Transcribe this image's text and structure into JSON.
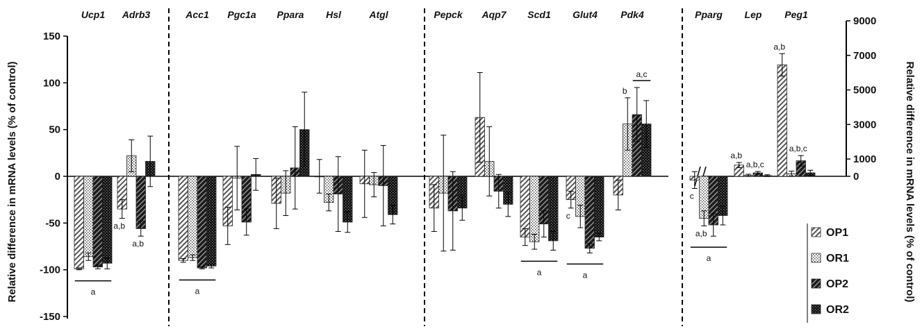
{
  "chart_data": {
    "type": "bar",
    "ylabel_left": "Relative difference in mRNA levels (% of control)",
    "ylabel_right": "Relative difference in mRNA levels (% of control)",
    "ylim_left": [
      -150,
      150
    ],
    "yticks_left": [
      150,
      100,
      50,
      0,
      -50,
      -100,
      -150
    ],
    "ylim_right": [
      0,
      9000
    ],
    "yticks_right": [
      9000,
      7000,
      5000,
      3000,
      1000,
      0
    ],
    "grid": false,
    "legend_position": "bottom-right",
    "series": [
      {
        "name": "OP1",
        "pattern": "diagonal"
      },
      {
        "name": "OR1",
        "pattern": "dots"
      },
      {
        "name": "OP2",
        "pattern": "dark-diagonal"
      },
      {
        "name": "OR2",
        "pattern": "dark-dots"
      }
    ],
    "groups": [
      {
        "gene": "Ucp1",
        "axis": "left",
        "values": [
          -99,
          -86,
          -97,
          -93
        ],
        "errors": [
          1,
          4,
          2,
          6
        ]
      },
      {
        "gene": "Adrb3",
        "axis": "left",
        "values": [
          -35,
          22,
          -56,
          16
        ],
        "errors": [
          10,
          17,
          8,
          27
        ]
      },
      {
        "gene": "Acc1",
        "axis": "left",
        "values": [
          -90,
          -87,
          -98,
          -96
        ],
        "errors": [
          2,
          3,
          1,
          2
        ]
      },
      {
        "gene": "Pgc1a",
        "axis": "left",
        "values": [
          -53,
          -2,
          -49,
          2
        ],
        "errors": [
          20,
          34,
          14,
          17
        ]
      },
      {
        "gene": "Ppara",
        "axis": "left",
        "values": [
          -29,
          -18,
          9,
          50
        ],
        "errors": [
          27,
          24,
          44,
          40
        ]
      },
      {
        "gene": "Hsl",
        "axis": "left",
        "values": [
          0,
          -28,
          -19,
          -49
        ],
        "errors": [
          18,
          9,
          40,
          11
        ]
      },
      {
        "gene": "Atgl",
        "axis": "left",
        "values": [
          -8,
          -9,
          -10,
          -41
        ],
        "errors": [
          36,
          13,
          43,
          10
        ]
      },
      {
        "gene": "Pepck",
        "axis": "left",
        "values": [
          -34,
          -18,
          -37,
          -34
        ],
        "errors": [
          25,
          62,
          42,
          13
        ]
      },
      {
        "gene": "Aqp7",
        "axis": "left",
        "values": [
          63,
          16,
          -16,
          -30
        ],
        "errors": [
          48,
          37,
          18,
          13
        ]
      },
      {
        "gene": "Scd1",
        "axis": "left",
        "values": [
          -65,
          -70,
          -51,
          -69
        ],
        "errors": [
          9,
          8,
          14,
          10
        ]
      },
      {
        "gene": "Glut4",
        "axis": "left",
        "values": [
          -25,
          -43,
          -77,
          -65
        ],
        "errors": [
          9,
          12,
          5,
          4
        ]
      },
      {
        "gene": "Pdk4",
        "axis": "left",
        "values": [
          -20,
          56,
          66,
          56
        ],
        "errors": [
          16,
          28,
          29,
          25
        ]
      },
      {
        "gene": "Pparg",
        "axis": "left",
        "values": [
          -4,
          -45,
          -52,
          -42
        ],
        "errors": [
          9,
          8,
          12,
          10
        ]
      },
      {
        "gene": "Lep",
        "axis": "right",
        "values": [
          650,
          60,
          200,
          40
        ],
        "errors": [
          150,
          60,
          80,
          50
        ]
      },
      {
        "gene": "Peg1",
        "axis": "right",
        "values": [
          6450,
          150,
          900,
          200
        ],
        "errors": [
          650,
          150,
          300,
          150
        ]
      }
    ],
    "annotations": [
      {
        "gene": "Adrb3",
        "text": "a,b",
        "series": "OP1"
      },
      {
        "gene": "Adrb3",
        "text": "a,b",
        "series": "OP2"
      },
      {
        "gene": "Glut4",
        "text": "c",
        "series": "OP1"
      },
      {
        "gene": "Pdk4",
        "text": "b",
        "series": "OR1"
      },
      {
        "gene": "Pdk4",
        "text": "a,c",
        "series": "OP2-OR2"
      },
      {
        "gene": "Pparg",
        "text": "c",
        "series": "OP1"
      },
      {
        "gene": "Pparg",
        "text": "a,b",
        "series": "OR1"
      },
      {
        "gene": "Lep",
        "text": "a,b",
        "series": "OP1"
      },
      {
        "gene": "Lep",
        "text": "a,b,c",
        "series": "OP2"
      },
      {
        "gene": "Peg1",
        "text": "a,b",
        "series": "OP1"
      },
      {
        "gene": "Peg1",
        "text": "a,b,c",
        "series": "OP2"
      }
    ],
    "group_brackets": [
      {
        "genes": [
          "Ucp1"
        ],
        "text": "a"
      },
      {
        "genes": [
          "Acc1"
        ],
        "text": "a"
      },
      {
        "genes": [
          "Scd1"
        ],
        "text": "a"
      },
      {
        "genes": [
          "Glut4"
        ],
        "text": "a"
      },
      {
        "genes": [
          "Pparg"
        ],
        "text": "a"
      }
    ]
  }
}
